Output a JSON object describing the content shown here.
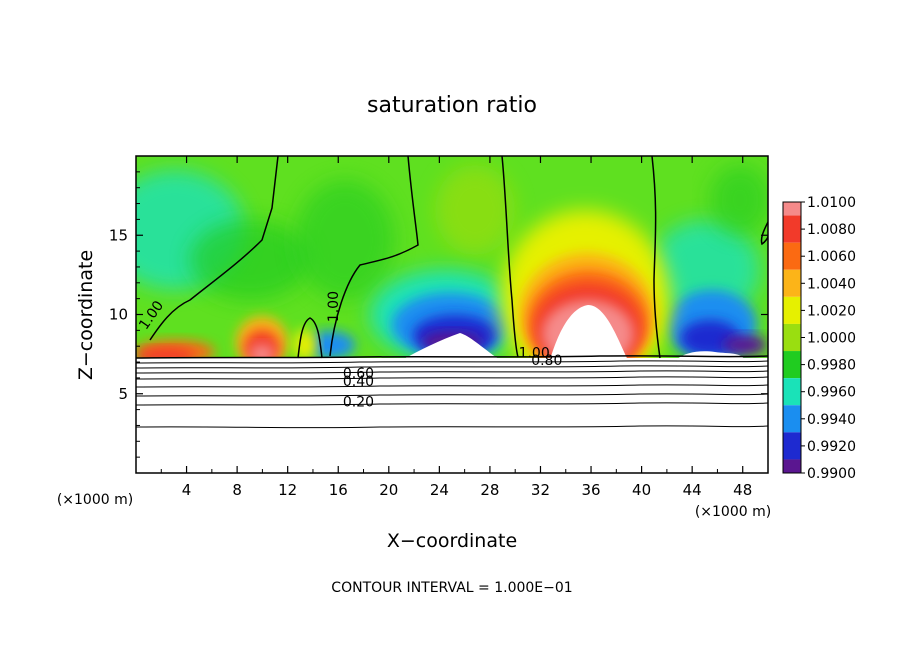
{
  "chart_data": {
    "type": "heatmap",
    "title": "saturation ratio",
    "xlabel": "X−coordinate",
    "ylabel": "Z−coordinate",
    "x_unit_label": "(×1000 m)",
    "y_unit_label": "(×1000 m)",
    "footer": "CONTOUR INTERVAL = 1.000E−01",
    "xlim": [
      0,
      50
    ],
    "ylim": [
      0,
      20
    ],
    "x_ticks": [
      4,
      8,
      12,
      16,
      20,
      24,
      28,
      32,
      36,
      40,
      44,
      48
    ],
    "y_ticks": [
      5,
      10,
      15
    ],
    "colorbar": {
      "labels": [
        "1.0100",
        "1.0080",
        "1.0060",
        "1.0040",
        "1.0020",
        "1.0000",
        "0.9980",
        "0.9960",
        "0.9940",
        "0.9920",
        "0.9900"
      ],
      "levels": [
        1.01,
        1.008,
        1.006,
        1.004,
        1.002,
        1.0,
        0.998,
        0.996,
        0.994,
        0.992,
        0.99
      ],
      "colors": [
        "#f58a8a",
        "#f23a2a",
        "#fb6a12",
        "#fcb418",
        "#e6f000",
        "#9ade10",
        "#20cc20",
        "#1ae2b8",
        "#1a8ef0",
        "#1e2ad0",
        "#5a1690"
      ]
    },
    "background_color": "#5fe020",
    "contour_labels": [
      {
        "text": "1.00",
        "x": 1.5,
        "z": 9.8
      },
      {
        "text": "1.00",
        "x": 16.0,
        "z": 10.5
      },
      {
        "text": "1.00",
        "x": 31.5,
        "z": 7.3
      },
      {
        "text": "0.80",
        "x": 32.5,
        "z": 6.8
      },
      {
        "text": "0.60",
        "x": 17.6,
        "z": 6.0
      },
      {
        "text": "0.40",
        "x": 17.6,
        "z": 5.5
      },
      {
        "text": "0.20",
        "x": 17.6,
        "z": 4.2
      }
    ],
    "notes": ""
  }
}
